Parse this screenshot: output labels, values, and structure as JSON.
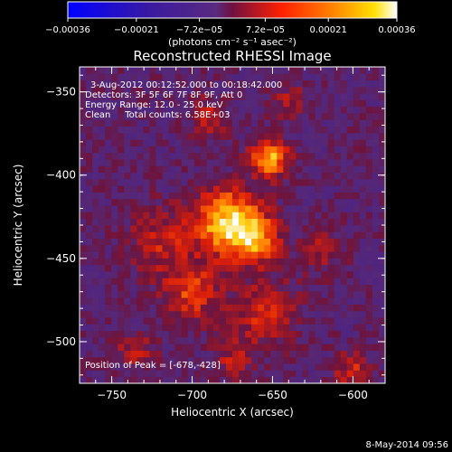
{
  "colorbar": {
    "ticks": [
      -0.00036,
      -0.00021,
      -7.2e-05,
      7.2e-05,
      0.00021,
      0.00036
    ],
    "tick_labels": [
      "−0.00036",
      "−0.00021",
      "−7.2e−05",
      "7.2e−05",
      "0.00021",
      "0.00036"
    ],
    "unit_label": "(photons cm⁻² s⁻¹ asec⁻²)",
    "range": [
      -0.00036,
      0.00036
    ]
  },
  "info": {
    "time_range": "3-Aug-2012 00:12:52.000 to 00:18:42.000",
    "detectors": "Detectors: 3F 5F 6F 7F 8F 9F, Att 0",
    "energy": "Energy Range: 12.0 - 25.0 keV",
    "method_counts": "Clean     Total counts: 6.58E+03",
    "peak": "Position of Peak = [-678,-428]"
  },
  "footer": {
    "date": "8-May-2014 09:56"
  },
  "chart_data": {
    "type": "heatmap",
    "title": "Reconstructed RHESSI Image",
    "xlabel": "Heliocentric X (arcsec)",
    "ylabel": "Heliocentric Y (arcsec)",
    "xlim": [
      -770,
      -580
    ],
    "ylim": [
      -525,
      -335
    ],
    "x_ticks": [
      -750,
      -700,
      -650,
      -600
    ],
    "y_ticks": [
      -350,
      -400,
      -450,
      -500
    ],
    "x_tick_labels": [
      "−750",
      "−700",
      "−650",
      "−600"
    ],
    "y_tick_labels": [
      "−350",
      "−400",
      "−450",
      "−500"
    ],
    "colormap": "blue-purple-red-yellow-white",
    "value_range": [
      -0.00036,
      0.00036
    ],
    "peak_position": [
      -678,
      -428
    ],
    "sources": [
      {
        "x": -678,
        "y": -428,
        "amplitude": 0.00036,
        "sigma": 14
      },
      {
        "x": -652,
        "y": -390,
        "amplitude": 0.00032,
        "sigma": 8
      },
      {
        "x": -660,
        "y": -438,
        "amplitude": 0.00024,
        "sigma": 10
      },
      {
        "x": -700,
        "y": -470,
        "amplitude": 0.00019,
        "sigma": 12
      },
      {
        "x": -655,
        "y": -482,
        "amplitude": 0.00016,
        "sigma": 14
      },
      {
        "x": -720,
        "y": -440,
        "amplitude": 0.00014,
        "sigma": 14
      },
      {
        "x": -600,
        "y": -518,
        "amplitude": 0.00016,
        "sigma": 8
      },
      {
        "x": -690,
        "y": -365,
        "amplitude": 0.00012,
        "sigma": 9
      },
      {
        "x": -640,
        "y": -355,
        "amplitude": 0.0001,
        "sigma": 8
      },
      {
        "x": -735,
        "y": -505,
        "amplitude": 0.00012,
        "sigma": 9
      },
      {
        "x": -620,
        "y": -445,
        "amplitude": 0.00011,
        "sigma": 10
      },
      {
        "x": -675,
        "y": -510,
        "amplitude": 0.00011,
        "sigma": 9
      }
    ]
  }
}
